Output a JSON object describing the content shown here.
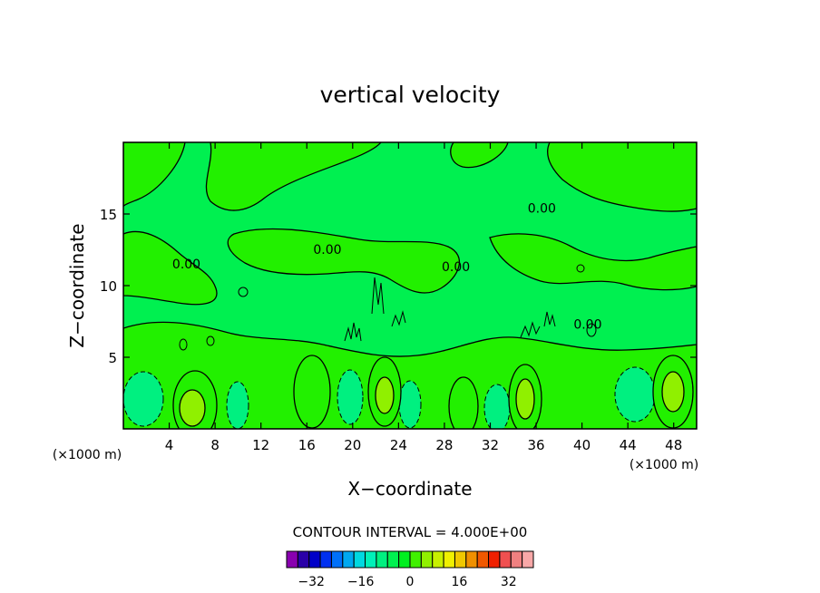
{
  "chart_data": {
    "type": "contour",
    "title": "vertical velocity",
    "xlabel": "X−coordinate",
    "ylabel": "Z−coordinate",
    "x_unit": "(×1000 m)",
    "y_unit": "(×1000 m)",
    "xlim": [
      0,
      50
    ],
    "ylim": [
      0,
      20
    ],
    "x_ticks": [
      4,
      8,
      12,
      16,
      20,
      24,
      28,
      32,
      36,
      40,
      44,
      48
    ],
    "y_ticks": [
      5,
      10,
      15
    ],
    "x_tick_labels": [
      "4",
      "8",
      "12",
      "16",
      "20",
      "24",
      "28",
      "32",
      "36",
      "40",
      "44",
      "48"
    ],
    "y_tick_labels": [
      "5",
      "10",
      "15"
    ],
    "contour_labels": [
      {
        "text": "0.00",
        "x": 5.5,
        "y": 11.2
      },
      {
        "text": "0.00",
        "x": 17.8,
        "y": 12.2
      },
      {
        "text": "0.00",
        "x": 29.0,
        "y": 11.0
      },
      {
        "text": "0.00",
        "x": 36.5,
        "y": 15.1
      },
      {
        "text": "0.00",
        "x": 40.5,
        "y": 7.0
      }
    ],
    "updrafts": [
      {
        "x": 5.5,
        "y": 1.6,
        "level": 12
      },
      {
        "x": 16.5,
        "y": 2.6,
        "level": 8
      },
      {
        "x": 22.5,
        "y": 2.5,
        "level": 8
      },
      {
        "x": 29.8,
        "y": 1.8,
        "level": 8
      },
      {
        "x": 35.0,
        "y": 2.1,
        "level": 12
      },
      {
        "x": 48.0,
        "y": 2.7,
        "level": 12
      }
    ],
    "downdrafts": [
      {
        "x": 1.8,
        "y": 2.2,
        "level": -4
      },
      {
        "x": 10.0,
        "y": 1.8,
        "level": -4
      },
      {
        "x": 19.5,
        "y": 2.0,
        "level": -4
      },
      {
        "x": 25.0,
        "y": 1.8,
        "level": -4
      },
      {
        "x": 32.0,
        "y": 1.5,
        "level": -4
      },
      {
        "x": 44.5,
        "y": 2.4,
        "level": -4
      }
    ],
    "contour_interval_label": "CONTOUR INTERVAL =  4.000E+00",
    "colorbar": {
      "min": -40,
      "max": 40,
      "step": 4,
      "colors": [
        "#8a00b0",
        "#2a00a8",
        "#0000c8",
        "#0030f0",
        "#0070f8",
        "#00a8f0",
        "#00d8e0",
        "#00f0b8",
        "#00f080",
        "#00f050",
        "#00f020",
        "#40f000",
        "#90f000",
        "#c8f000",
        "#f0f000",
        "#f0c800",
        "#f09000",
        "#f05800",
        "#f02000",
        "#f05050",
        "#f08080",
        "#f8a8a8"
      ],
      "tick_values": [
        -32,
        -16,
        0,
        16,
        32
      ],
      "tick_labels": [
        "−32",
        "−16",
        "0",
        "16",
        "32"
      ]
    },
    "colors": {
      "background": "#00f050",
      "band_plus": "#22f000",
      "band_strong": "#90f000",
      "band_minus": "#00f080"
    }
  }
}
